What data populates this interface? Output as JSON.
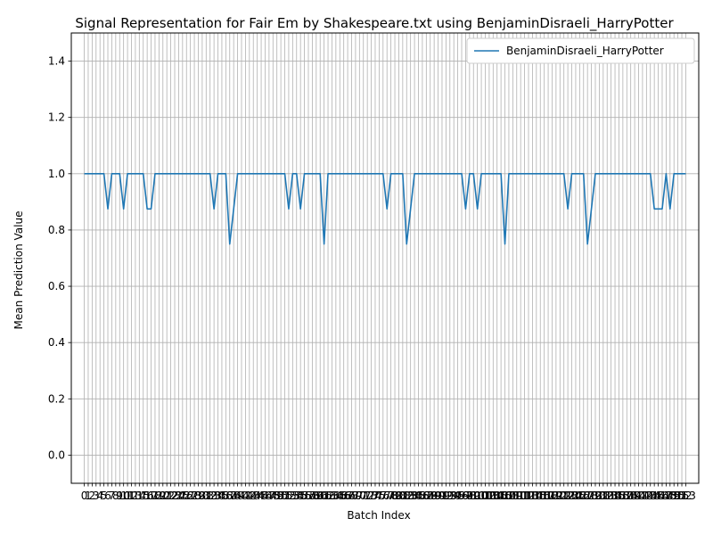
{
  "chart_data": {
    "type": "line",
    "title": "Signal Representation for Fair Em by Shakespeare.txt using BenjaminDisraeli_HarryPotter",
    "xlabel": "Batch Index",
    "ylabel": "Mean Prediction Value",
    "xlim": [
      -3.3,
      156.3
    ],
    "ylim": [
      -0.1,
      1.5
    ],
    "yticks": [
      0.0,
      0.2,
      0.4,
      0.6,
      0.8,
      1.0,
      1.2,
      1.4
    ],
    "ytick_labels": [
      "0.0",
      "0.2",
      "0.4",
      "0.6",
      "0.8",
      "1.0",
      "1.2",
      "1.4"
    ],
    "grid": true,
    "legend_position": "top-right",
    "color": "#1f77b4",
    "series": [
      {
        "name": "BenjaminDisraeli_HarryPotter",
        "x_start": 0,
        "values": [
          1,
          1,
          1,
          1,
          1,
          1,
          0.875,
          1,
          1,
          1,
          0.875,
          1,
          1,
          1,
          1,
          1,
          0.875,
          0.875,
          1,
          1,
          1,
          1,
          1,
          1,
          1,
          1,
          1,
          1,
          1,
          1,
          1,
          1,
          1,
          0.875,
          1,
          1,
          1,
          0.75,
          0.875,
          1,
          1,
          1,
          1,
          1,
          1,
          1,
          1,
          1,
          1,
          1,
          1,
          1,
          0.875,
          1,
          1,
          0.875,
          1,
          1,
          1,
          1,
          1,
          0.75,
          1,
          1,
          1,
          1,
          1,
          1,
          1,
          1,
          1,
          1,
          1,
          1,
          1,
          1,
          1,
          0.875,
          1,
          1,
          1,
          1,
          0.75,
          0.875,
          1,
          1,
          1,
          1,
          1,
          1,
          1,
          1,
          1,
          1,
          1,
          1,
          1,
          0.875,
          1,
          1,
          0.875,
          1,
          1,
          1,
          1,
          1,
          1,
          0.75,
          1,
          1,
          1,
          1,
          1,
          1,
          1,
          1,
          1,
          1,
          1,
          1,
          1,
          1,
          1,
          0.875,
          1,
          1,
          1,
          1,
          0.75,
          0.875,
          1,
          1,
          1,
          1,
          1,
          1,
          1,
          1,
          1,
          1,
          1,
          1,
          1,
          1,
          1,
          0.875,
          0.875,
          0.875,
          1,
          0.875,
          1,
          1,
          1,
          1
        ]
      }
    ]
  }
}
